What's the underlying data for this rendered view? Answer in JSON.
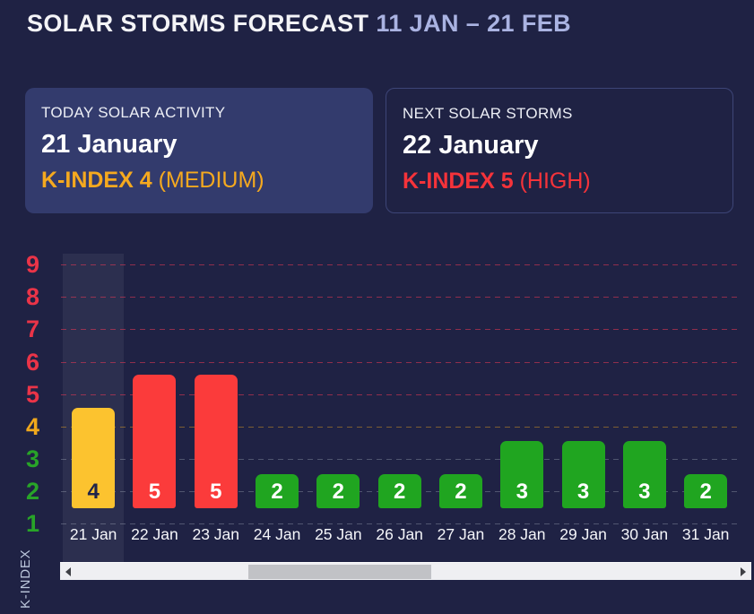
{
  "title": {
    "main": "SOLAR STORMS FORECAST",
    "range": "11 JAN – 21 FEB"
  },
  "cards": {
    "today": {
      "label": "TODAY SOLAR ACTIVITY",
      "date": "21 January",
      "kindex": "K-INDEX 4",
      "severity": "(MEDIUM)"
    },
    "next": {
      "label": "NEXT SOLAR STORMS",
      "date": "22 January",
      "kindex": "K-INDEX 5",
      "severity": "(HIGH)"
    }
  },
  "chart_data": {
    "type": "bar",
    "categories": [
      "21 Jan",
      "22 Jan",
      "23 Jan",
      "24 Jan",
      "25 Jan",
      "26 Jan",
      "27 Jan",
      "28 Jan",
      "29 Jan",
      "30 Jan",
      "31 Jan"
    ],
    "values": [
      4,
      5,
      5,
      2,
      2,
      2,
      2,
      3,
      3,
      3,
      2
    ],
    "title": "",
    "xlabel": "",
    "ylabel": "K-INDEX",
    "ylim": [
      0,
      9
    ],
    "yticks": [
      1,
      2,
      3,
      4,
      5,
      6,
      7,
      8,
      9
    ],
    "grid": "horizontal-dashed",
    "legend": "none",
    "highlighted_category": "21 Jan"
  },
  "colors": {
    "background": "#1f2244",
    "card_fill": "#333b6d",
    "card_border": "#3d4577",
    "title_range": "#aab3e2",
    "accent_orange": "#f5a91f",
    "accent_red": "#f5333a",
    "bar_yellow": "#fcc32f",
    "bar_red": "#fb3b3b",
    "bar_green": "#20a520",
    "bar_label_dark": "#20244a",
    "bar_label_light": "#ffffff",
    "tick_red": "#ea3448",
    "tick_orange": "#f0a81c",
    "tick_green": "#28a428",
    "grid_red": "rgba(236,56,84,0.55)",
    "grid_orange": "rgba(240,168,28,0.45)",
    "grid_gray": "rgba(195,205,215,0.30)"
  },
  "scrollbar": {
    "left_icon": "scroll-left-arrow",
    "right_icon": "scroll-right-arrow"
  }
}
